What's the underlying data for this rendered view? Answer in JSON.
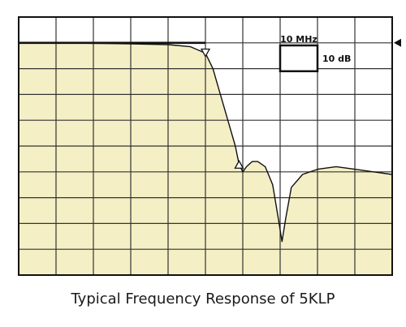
{
  "chart_data": {
    "type": "area",
    "title": "",
    "caption": "Typical Frequency Response of 5KLP",
    "horizontal_scale_label": "10 MHz",
    "vertical_scale_label": "10 dB",
    "xlabel": "",
    "ylabel": "",
    "x_divisions": 10,
    "y_divisions": 10,
    "xlim": [
      0,
      10
    ],
    "ylim": [
      -90,
      10
    ],
    "x_unit": "div (10 MHz/div)",
    "y_unit": "dB (10 dB/div, 0 dB at second graticule line)",
    "grid": true,
    "fill_color": "#f5efc5",
    "trace_color": "#111111",
    "series": [
      {
        "points": [
          {
            "x": 0.0,
            "y": 0.0
          },
          {
            "x": 1.0,
            "y": 0.0
          },
          {
            "x": 2.0,
            "y": -0.2
          },
          {
            "x": 3.0,
            "y": -0.4
          },
          {
            "x": 4.0,
            "y": -0.7
          },
          {
            "x": 4.6,
            "y": -1.5
          },
          {
            "x": 5.0,
            "y": -4.0
          },
          {
            "x": 5.2,
            "y": -10.0
          },
          {
            "x": 5.4,
            "y": -20.0
          },
          {
            "x": 5.6,
            "y": -30.0
          },
          {
            "x": 5.8,
            "y": -40.0
          },
          {
            "x": 5.9,
            "y": -47.0
          },
          {
            "x": 6.0,
            "y": -50.0
          },
          {
            "x": 6.1,
            "y": -48.0
          },
          {
            "x": 6.25,
            "y": -46.0
          },
          {
            "x": 6.4,
            "y": -46.0
          },
          {
            "x": 6.6,
            "y": -48.0
          },
          {
            "x": 6.8,
            "y": -55.0
          },
          {
            "x": 6.95,
            "y": -68.0
          },
          {
            "x": 7.05,
            "y": -77.0
          },
          {
            "x": 7.15,
            "y": -68.0
          },
          {
            "x": 7.3,
            "y": -56.0
          },
          {
            "x": 7.6,
            "y": -51.0
          },
          {
            "x": 8.0,
            "y": -49.0
          },
          {
            "x": 8.5,
            "y": -48.0
          },
          {
            "x": 9.0,
            "y": -49.0
          },
          {
            "x": 9.5,
            "y": -50.0
          },
          {
            "x": 10.0,
            "y": -51.0
          }
        ]
      }
    ],
    "markers": [
      {
        "x": 5.0,
        "y": -4.0,
        "symbol": "triangle-down"
      },
      {
        "x": 5.9,
        "y": -47.0,
        "symbol": "triangle-up"
      }
    ]
  }
}
